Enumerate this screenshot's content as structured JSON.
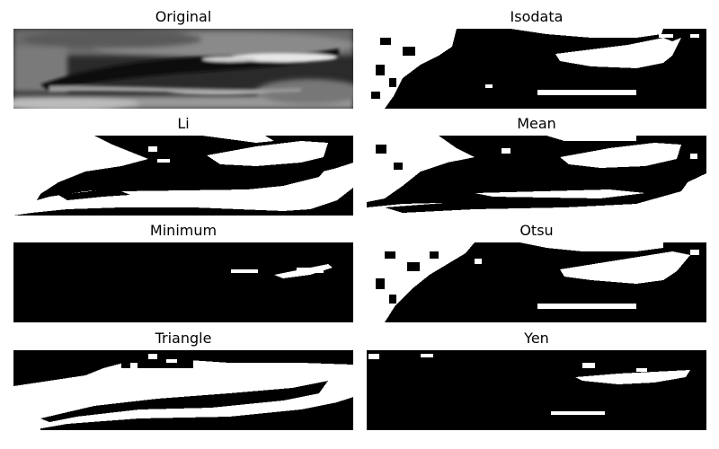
{
  "panels": [
    {
      "title": "Original"
    },
    {
      "title": "Isodata"
    },
    {
      "title": "Li"
    },
    {
      "title": "Mean"
    },
    {
      "title": "Minimum"
    },
    {
      "title": "Otsu"
    },
    {
      "title": "Triangle"
    },
    {
      "title": "Yen"
    }
  ]
}
